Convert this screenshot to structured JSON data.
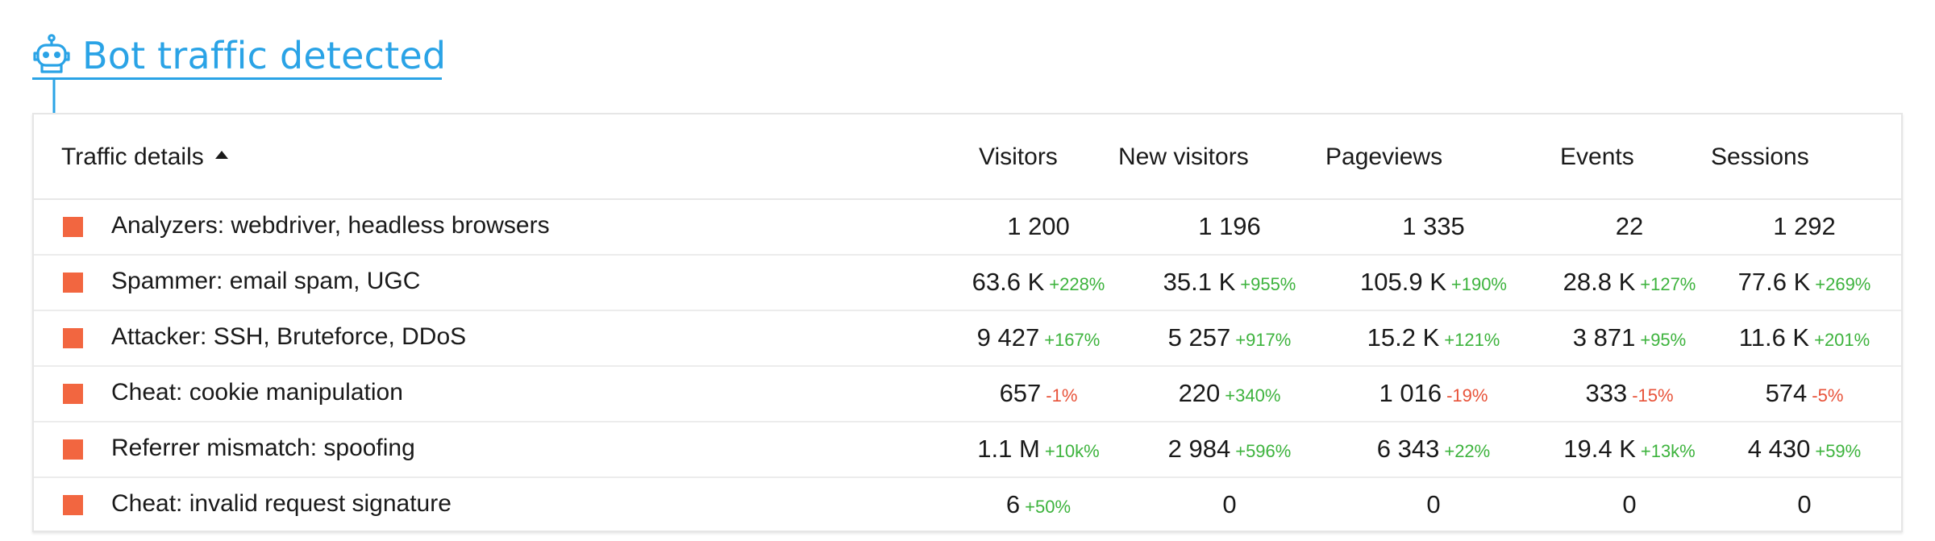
{
  "header": {
    "title": "Bot traffic detected",
    "accent": "#2aa3e6"
  },
  "table": {
    "columns": [
      "Traffic details",
      "Visitors",
      "New visitors",
      "Pageviews",
      "Events",
      "Sessions"
    ],
    "category_color": "#f26640",
    "up_color": "#3db33d",
    "down_color": "#e8533a",
    "rows": [
      {
        "label": "Analyzers: webdriver, headless browsers",
        "cells": [
          {
            "v": "1 200",
            "d": ""
          },
          {
            "v": "1 196",
            "d": ""
          },
          {
            "v": "1 335",
            "d": ""
          },
          {
            "v": "22",
            "d": ""
          },
          {
            "v": "1 292",
            "d": ""
          }
        ]
      },
      {
        "label": "Spammer: email spam, UGC",
        "cells": [
          {
            "v": "63.6 K",
            "d": "+228%"
          },
          {
            "v": "35.1 K",
            "d": "+955%"
          },
          {
            "v": "105.9 K",
            "d": "+190%"
          },
          {
            "v": "28.8 K",
            "d": "+127%"
          },
          {
            "v": "77.6 K",
            "d": "+269%"
          }
        ]
      },
      {
        "label": "Attacker: SSH, Bruteforce, DDoS",
        "cells": [
          {
            "v": "9 427",
            "d": "+167%"
          },
          {
            "v": "5 257",
            "d": "+917%"
          },
          {
            "v": "15.2 K",
            "d": "+121%"
          },
          {
            "v": "3 871",
            "d": "+95%"
          },
          {
            "v": "11.6 K",
            "d": "+201%"
          }
        ]
      },
      {
        "label": "Cheat: cookie manipulation",
        "cells": [
          {
            "v": "657",
            "d": "-1%"
          },
          {
            "v": "220",
            "d": "+340%"
          },
          {
            "v": "1 016",
            "d": "-19%"
          },
          {
            "v": "333",
            "d": "-15%"
          },
          {
            "v": "574",
            "d": "-5%"
          }
        ]
      },
      {
        "label": "Referrer mismatch: spoofing",
        "cells": [
          {
            "v": "1.1 M",
            "d": "+10k%"
          },
          {
            "v": "2 984",
            "d": "+596%"
          },
          {
            "v": "6 343",
            "d": "+22%"
          },
          {
            "v": "19.4 K",
            "d": "+13k%"
          },
          {
            "v": "4 430",
            "d": "+59%"
          }
        ]
      },
      {
        "label": "Cheat: invalid request signature",
        "cells": [
          {
            "v": "6",
            "d": "+50%"
          },
          {
            "v": "0",
            "d": ""
          },
          {
            "v": "0",
            "d": ""
          },
          {
            "v": "0",
            "d": ""
          },
          {
            "v": "0",
            "d": ""
          }
        ]
      }
    ]
  }
}
